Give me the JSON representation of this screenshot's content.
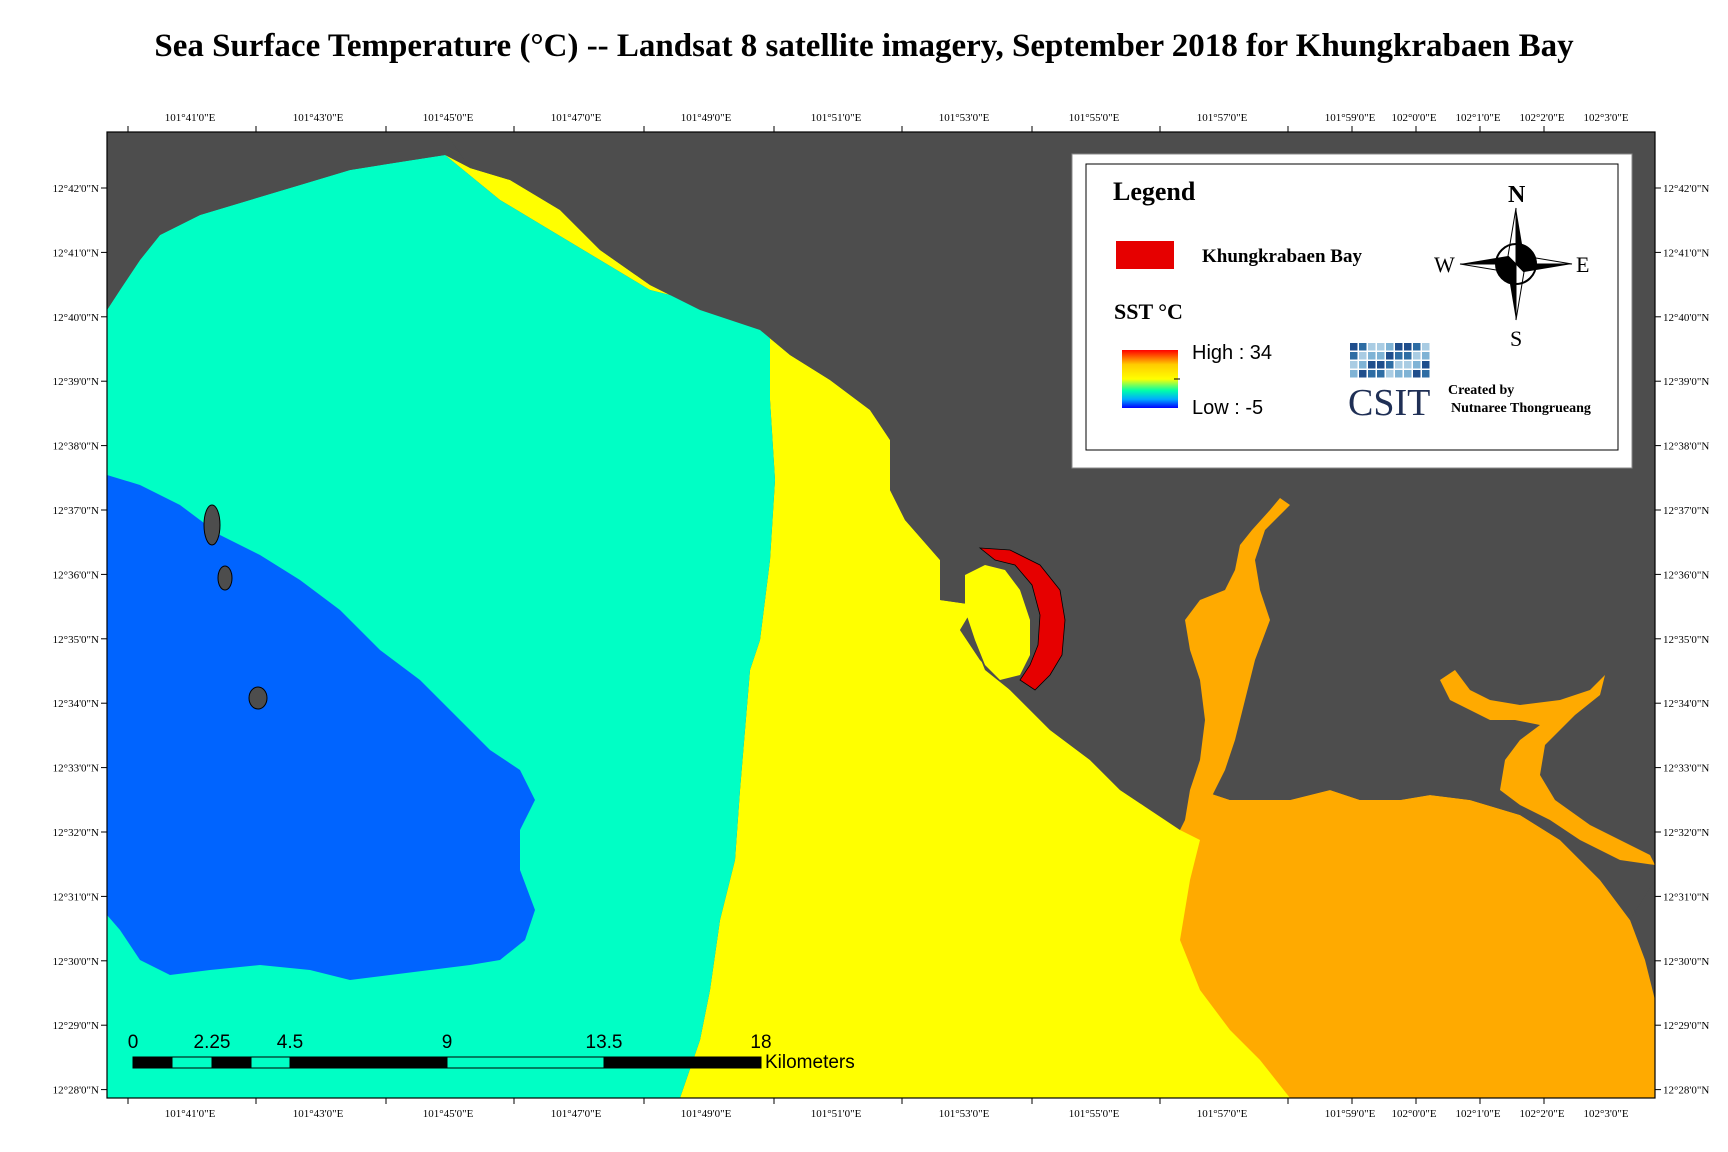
{
  "title": "Sea Surface Temperature (°C) -- Landsat 8 satellite imagery, September 2018 for Khungkrabaen Bay",
  "axes": {
    "lon_labels": [
      "101°41'0\"E",
      "101°43'0\"E",
      "101°45'0\"E",
      "101°47'0\"E",
      "101°49'0\"E",
      "101°51'0\"E",
      "101°53'0\"E",
      "101°55'0\"E",
      "101°57'0\"E",
      "101°59'0\"E",
      "102°0'0\"E",
      "102°1'0\"E",
      "102°2'0\"E",
      "102°3'0\"E"
    ],
    "lat_labels": [
      "12°42'0\"N",
      "12°41'0\"N",
      "12°40'0\"N",
      "12°39'0\"N",
      "12°38'0\"N",
      "12°37'0\"N",
      "12°36'0\"N",
      "12°35'0\"N",
      "12°34'0\"N",
      "12°33'0\"N",
      "12°32'0\"N",
      "12°31'0\"N",
      "12°30'0\"N",
      "12°29'0\"N",
      "12°28'0\"N"
    ]
  },
  "legend": {
    "title": "Legend",
    "bay_label": "Khungkrabaen Bay",
    "sst_label": "SST  °C",
    "high_label": "High : 34",
    "low_label": "Low : -5",
    "logo_text": "CSIT",
    "credit_line1": "Created by",
    "credit_line2": "Nutnaree Thongrueang"
  },
  "compass": {
    "n": "N",
    "s": "S",
    "e": "E",
    "w": "W"
  },
  "scale_bar": {
    "ticks": [
      "0",
      "2.25",
      "4.5",
      "9",
      "13.5",
      "18"
    ],
    "unit": "Kilometers"
  },
  "colors": {
    "land": "#4d4d4d",
    "sea_cool": "#0064ff",
    "sea_mid": "#00ffc5",
    "sea_warm": "#ffff00",
    "sea_hot": "#ffaa00",
    "bay": "#e60000"
  }
}
